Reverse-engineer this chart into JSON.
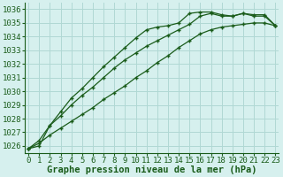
{
  "title": "Graphe pression niveau de la mer (hPa)",
  "x_ticks": [
    0,
    1,
    2,
    3,
    4,
    5,
    6,
    7,
    8,
    9,
    10,
    11,
    12,
    13,
    14,
    15,
    16,
    17,
    18,
    19,
    20,
    21,
    22,
    23
  ],
  "xlim": [
    -0.3,
    23.3
  ],
  "ylim": [
    1025.5,
    1036.5
  ],
  "yticks": [
    1026,
    1027,
    1028,
    1029,
    1030,
    1031,
    1032,
    1033,
    1034,
    1035,
    1036
  ],
  "line1_x": [
    0,
    1,
    2,
    3,
    4,
    5,
    6,
    7,
    8,
    9,
    10,
    11,
    12,
    13,
    14,
    15,
    16,
    17,
    18,
    19,
    20,
    21,
    22,
    23
  ],
  "line1_y": [
    1025.8,
    1026.0,
    1027.5,
    1028.5,
    1029.5,
    1030.2,
    1031.0,
    1031.8,
    1032.5,
    1033.2,
    1033.9,
    1034.5,
    1034.7,
    1034.8,
    1035.0,
    1035.7,
    1035.8,
    1035.8,
    1035.6,
    1035.5,
    1035.7,
    1035.6,
    1035.6,
    1034.8
  ],
  "line2_x": [
    0,
    1,
    2,
    3,
    4,
    5,
    6,
    7,
    8,
    9,
    10,
    11,
    12,
    13,
    14,
    15,
    16,
    17,
    18,
    19,
    20,
    21,
    22,
    23
  ],
  "line2_y": [
    1025.8,
    1026.2,
    1026.8,
    1027.3,
    1027.8,
    1028.3,
    1028.8,
    1029.4,
    1029.9,
    1030.4,
    1031.0,
    1031.5,
    1032.1,
    1032.6,
    1033.2,
    1033.7,
    1034.2,
    1034.5,
    1034.7,
    1034.8,
    1034.9,
    1035.0,
    1035.0,
    1034.8
  ],
  "line3_x": [
    0,
    1,
    2,
    3,
    4,
    5,
    6,
    7,
    8,
    9,
    10,
    11,
    12,
    13,
    14,
    15,
    16,
    17,
    18,
    19,
    20,
    21,
    22,
    23
  ],
  "line3_y": [
    1025.8,
    1026.4,
    1027.5,
    1028.2,
    1029.0,
    1029.7,
    1030.3,
    1031.0,
    1031.7,
    1032.3,
    1032.8,
    1033.3,
    1033.7,
    1034.1,
    1034.5,
    1034.9,
    1035.5,
    1035.7,
    1035.5,
    1035.5,
    1035.7,
    1035.5,
    1035.5,
    1034.8
  ],
  "bg_color": "#d6f0ee",
  "grid_color": "#b0d8d4",
  "line_color": "#1a5c1a",
  "marker": "+",
  "marker_size": 3.5,
  "label_fontsize": 6.5,
  "title_fontsize": 7.5
}
